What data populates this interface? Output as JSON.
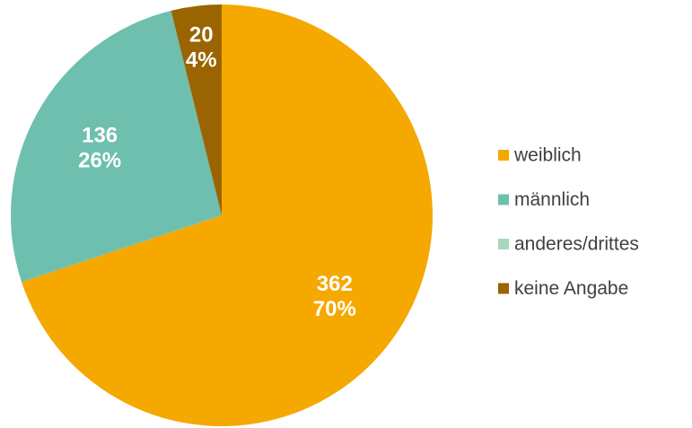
{
  "chart_data": {
    "type": "pie",
    "categories": [
      "weiblich",
      "männlich",
      "anderes/drittes",
      "keine Angabe"
    ],
    "values": [
      362,
      136,
      0,
      20
    ],
    "percent_labels": [
      "70%",
      "26%",
      null,
      "4%"
    ],
    "colors": [
      "#f5a800",
      "#6fbfae",
      "#a9d7bd",
      "#9a6400"
    ],
    "legend": "right"
  }
}
